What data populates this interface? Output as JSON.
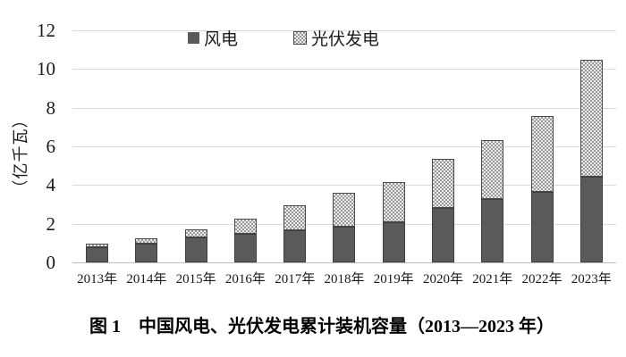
{
  "figure": {
    "caption": "图 1　中国风电、光伏发电累计装机容量（2013—2023 年）"
  },
  "legend": {
    "wind_label": "风电",
    "solar_label": "光伏发电"
  },
  "chart_data": {
    "type": "bar",
    "stacked": true,
    "title": "",
    "xlabel": "",
    "ylabel": "（亿千瓦）",
    "ylim": [
      0,
      12
    ],
    "yticks": [
      0,
      2,
      4,
      6,
      8,
      10,
      12
    ],
    "grid": true,
    "legend_position": "top-center",
    "categories": [
      "2013年",
      "2014年",
      "2015年",
      "2016年",
      "2017年",
      "2018年",
      "2019年",
      "2020年",
      "2021年",
      "2022年",
      "2023年"
    ],
    "series": [
      {
        "name": "风电",
        "pattern": "solid",
        "color": "#5a5a5a",
        "values": [
          0.77,
          0.96,
          1.29,
          1.49,
          1.64,
          1.84,
          2.1,
          2.81,
          3.28,
          3.65,
          4.41
        ]
      },
      {
        "name": "光伏发电",
        "pattern": "checker",
        "color": "#999999",
        "background": "#ececec",
        "values": [
          0.19,
          0.28,
          0.43,
          0.77,
          1.3,
          1.74,
          2.04,
          2.53,
          3.06,
          3.93,
          6.09
        ]
      }
    ],
    "totals": [
      0.96,
      1.24,
      1.72,
      2.26,
      2.94,
      3.58,
      4.14,
      5.34,
      6.34,
      7.58,
      10.5
    ]
  },
  "colors": {
    "wind_fill": "#5a5a5a",
    "bar_border": "#3d3d3d",
    "gridline": "#d9d9d9",
    "axis_line": "#bdbdbd",
    "text": "#1a1a1a"
  }
}
